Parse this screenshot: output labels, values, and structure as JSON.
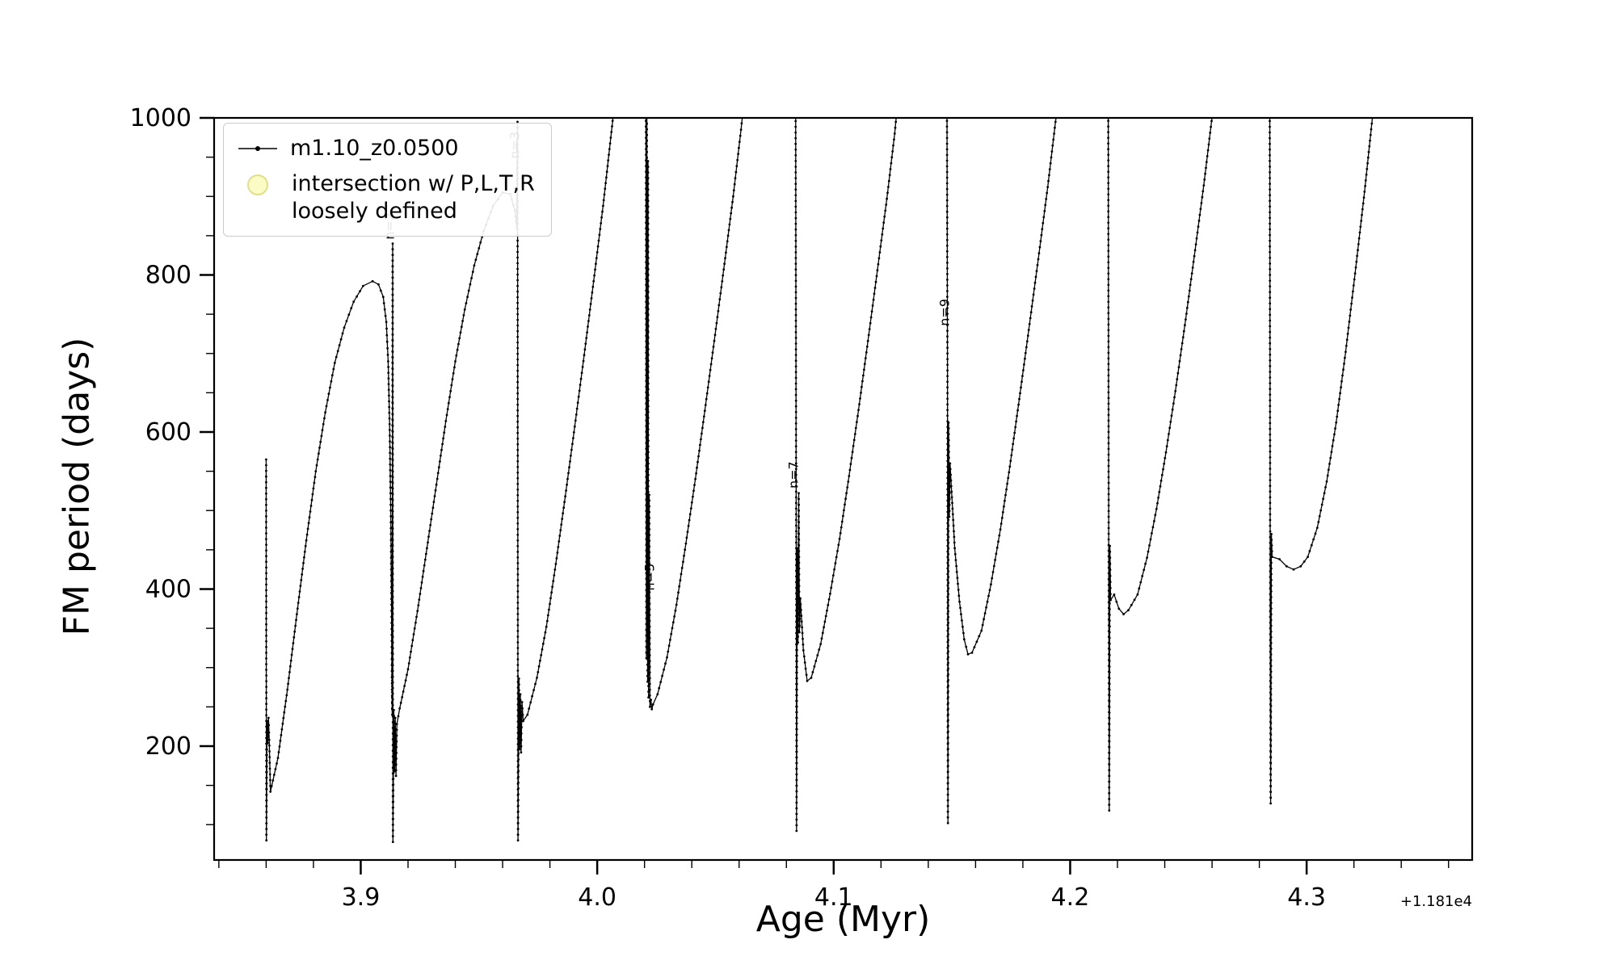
{
  "chart_data": {
    "type": "line",
    "title": "",
    "xlabel": "Age (Myr)",
    "ylabel": "FM period (days)",
    "x_offset": "+1.181e4",
    "xlim": [
      3.838,
      4.37
    ],
    "ylim": [
      55,
      1000
    ],
    "x_ticks": [
      3.9,
      4.0,
      4.1,
      4.2,
      4.3
    ],
    "y_ticks": [
      200,
      400,
      600,
      800,
      1000
    ],
    "x_minor_step": 0.02,
    "y_minor_step": 50,
    "grid": false,
    "line_color": "#000000",
    "legend": {
      "position": "upper left",
      "entries": [
        {
          "label": "m1.10_z0.0500",
          "marker": "line-with-dot",
          "color": "#000000"
        },
        {
          "label": "intersection w/ P,L,T,R\nloosely defined",
          "marker": "circle",
          "color": "#f8f896"
        }
      ]
    },
    "annotations": [
      {
        "label": "n=2",
        "x": 3.9141,
        "y": 845,
        "rotation": -90
      },
      {
        "label": "n=3",
        "x": 3.967,
        "y": 948,
        "rotation": -90
      },
      {
        "label": "n=5",
        "x": 4.024,
        "y": 398,
        "rotation": -90
      },
      {
        "label": "n=7",
        "x": 4.0849,
        "y": 528,
        "rotation": -90
      },
      {
        "label": "n=9",
        "x": 4.1487,
        "y": 735,
        "rotation": -90
      }
    ],
    "series": [
      {
        "name": "m1.10_z0.0500",
        "points": [
          [
            3.86,
            565
          ],
          [
            3.8601,
            80
          ],
          [
            3.8604,
            232
          ],
          [
            3.8607,
            204
          ],
          [
            3.861,
            236
          ],
          [
            3.8613,
            208
          ],
          [
            3.8618,
            142
          ],
          [
            3.865,
            185
          ],
          [
            3.869,
            272
          ],
          [
            3.873,
            368
          ],
          [
            3.877,
            462
          ],
          [
            3.881,
            550
          ],
          [
            3.885,
            625
          ],
          [
            3.889,
            688
          ],
          [
            3.893,
            733
          ],
          [
            3.897,
            766
          ],
          [
            3.901,
            786
          ],
          [
            3.905,
            792
          ],
          [
            3.9075,
            788
          ],
          [
            3.9095,
            772
          ],
          [
            3.9108,
            740
          ],
          [
            3.9116,
            690
          ],
          [
            3.9122,
            610
          ],
          [
            3.9127,
            500
          ],
          [
            3.913,
            380
          ],
          [
            3.9132,
            280
          ],
          [
            3.9133,
            240
          ],
          [
            3.9135,
            840
          ],
          [
            3.9136,
            78
          ],
          [
            3.914,
            246
          ],
          [
            3.9143,
            168
          ],
          [
            3.9146,
            236
          ],
          [
            3.9149,
            162
          ],
          [
            3.9153,
            228
          ],
          [
            3.9165,
            248
          ],
          [
            3.92,
            298
          ],
          [
            3.924,
            372
          ],
          [
            3.928,
            452
          ],
          [
            3.932,
            533
          ],
          [
            3.936,
            614
          ],
          [
            3.94,
            690
          ],
          [
            3.944,
            756
          ],
          [
            3.948,
            812
          ],
          [
            3.952,
            856
          ],
          [
            3.956,
            888
          ],
          [
            3.96,
            905
          ],
          [
            3.9632,
            903
          ],
          [
            3.9652,
            882
          ],
          [
            3.966,
            860
          ],
          [
            3.9663,
            995
          ],
          [
            3.9665,
            80
          ],
          [
            3.9669,
            286
          ],
          [
            3.9672,
            196
          ],
          [
            3.9675,
            266
          ],
          [
            3.9678,
            192
          ],
          [
            3.9682,
            256
          ],
          [
            3.9687,
            232
          ],
          [
            3.9705,
            240
          ],
          [
            3.9745,
            287
          ],
          [
            3.9785,
            352
          ],
          [
            3.9825,
            432
          ],
          [
            3.9865,
            518
          ],
          [
            3.9905,
            607
          ],
          [
            3.9945,
            698
          ],
          [
            3.9985,
            792
          ],
          [
            4.0025,
            888
          ],
          [
            4.006,
            982
          ],
          [
            4.0076,
            1025
          ],
          [
            4.0206,
            1025
          ],
          [
            4.0208,
            312
          ],
          [
            4.021,
            1000
          ],
          [
            4.0213,
            282
          ],
          [
            4.0215,
            945
          ],
          [
            4.0217,
            262
          ],
          [
            4.022,
            520
          ],
          [
            4.0223,
            250
          ],
          [
            4.0227,
            259
          ],
          [
            4.0231,
            247
          ],
          [
            4.0236,
            253
          ],
          [
            4.0255,
            266
          ],
          [
            4.0295,
            313
          ],
          [
            4.0335,
            380
          ],
          [
            4.0375,
            458
          ],
          [
            4.0415,
            540
          ],
          [
            4.0455,
            627
          ],
          [
            4.0495,
            716
          ],
          [
            4.0535,
            807
          ],
          [
            4.0575,
            900
          ],
          [
            4.0608,
            985
          ],
          [
            4.0622,
            1025
          ],
          [
            4.0839,
            1025
          ],
          [
            4.0841,
            560
          ],
          [
            4.0843,
            92
          ],
          [
            4.0846,
            452
          ],
          [
            4.0849,
            332
          ],
          [
            4.0852,
            522
          ],
          [
            4.0855,
            345
          ],
          [
            4.0859,
            388
          ],
          [
            4.0872,
            322
          ],
          [
            4.0888,
            283
          ],
          [
            4.0905,
            287
          ],
          [
            4.0945,
            330
          ],
          [
            4.0985,
            394
          ],
          [
            4.1025,
            464
          ],
          [
            4.1065,
            544
          ],
          [
            4.1105,
            628
          ],
          [
            4.1145,
            716
          ],
          [
            4.1185,
            806
          ],
          [
            4.1225,
            897
          ],
          [
            4.1258,
            980
          ],
          [
            4.1272,
            1025
          ],
          [
            4.1479,
            1025
          ],
          [
            4.1481,
            700
          ],
          [
            4.1483,
            102
          ],
          [
            4.1486,
            612
          ],
          [
            4.1489,
            492
          ],
          [
            4.1492,
            560
          ],
          [
            4.1512,
            452
          ],
          [
            4.1532,
            384
          ],
          [
            4.1552,
            336
          ],
          [
            4.1568,
            317
          ],
          [
            4.1585,
            319
          ],
          [
            4.1625,
            347
          ],
          [
            4.1665,
            406
          ],
          [
            4.1705,
            476
          ],
          [
            4.1745,
            556
          ],
          [
            4.1785,
            642
          ],
          [
            4.1825,
            730
          ],
          [
            4.1865,
            820
          ],
          [
            4.1905,
            912
          ],
          [
            4.1938,
            995
          ],
          [
            4.1952,
            1025
          ],
          [
            4.2161,
            1025
          ],
          [
            4.2163,
            420
          ],
          [
            4.2165,
            118
          ],
          [
            4.2168,
            455
          ],
          [
            4.2171,
            386
          ],
          [
            4.2186,
            393
          ],
          [
            4.2206,
            375
          ],
          [
            4.2226,
            368
          ],
          [
            4.2246,
            373
          ],
          [
            4.2285,
            393
          ],
          [
            4.2325,
            440
          ],
          [
            4.2365,
            502
          ],
          [
            4.2405,
            574
          ],
          [
            4.2445,
            652
          ],
          [
            4.2485,
            736
          ],
          [
            4.2525,
            824
          ],
          [
            4.2565,
            914
          ],
          [
            4.2598,
            996
          ],
          [
            4.2612,
            1025
          ],
          [
            4.2844,
            1025
          ],
          [
            4.2846,
            350
          ],
          [
            4.2848,
            127
          ],
          [
            4.2851,
            470
          ],
          [
            4.2854,
            441
          ],
          [
            4.2885,
            438
          ],
          [
            4.2915,
            429
          ],
          [
            4.2945,
            425
          ],
          [
            4.2975,
            429
          ],
          [
            4.3005,
            441
          ],
          [
            4.3045,
            478
          ],
          [
            4.3085,
            537
          ],
          [
            4.3125,
            612
          ],
          [
            4.3165,
            702
          ],
          [
            4.3205,
            802
          ],
          [
            4.3245,
            906
          ],
          [
            4.3278,
            1000
          ],
          [
            4.329,
            1025
          ]
        ]
      }
    ]
  }
}
